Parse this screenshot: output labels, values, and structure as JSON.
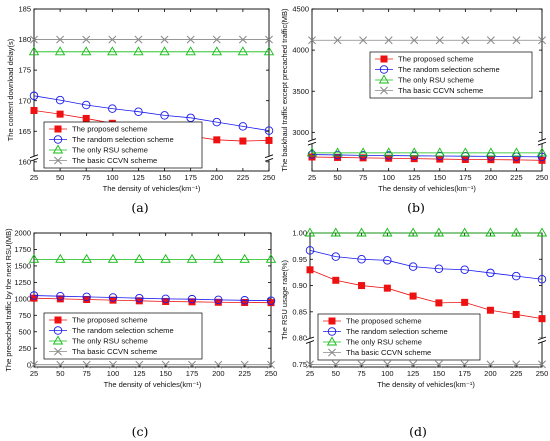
{
  "chart_data": [
    {
      "type": "line",
      "panel_caption": "(a)",
      "xlabel": "The density of vehicles(km⁻¹)",
      "ylabel": "The content download delay(s)",
      "x": [
        25,
        50,
        75,
        100,
        125,
        150,
        175,
        200,
        225,
        250
      ],
      "xlim": [
        25,
        250
      ],
      "x_ticks": [
        "25",
        "50",
        "75",
        "100",
        "125",
        "150",
        "175",
        "200",
        "225",
        "250"
      ],
      "ylim": [
        158.5,
        185
      ],
      "y_ticks": [
        "160",
        "165",
        "170",
        "175",
        "180",
        "185"
      ],
      "axis_break": "near bottom of y-axis",
      "legend": "lower-left",
      "grid": false,
      "series": [
        {
          "name": "The proposed scheme",
          "color": "#ee1111",
          "marker": "square-filled",
          "values": [
            168.4,
            167.8,
            167.1,
            166.3,
            165.6,
            164.9,
            164.2,
            163.6,
            163.4,
            163.5
          ]
        },
        {
          "name": "The random selection scheme",
          "color": "#1a1aee",
          "marker": "circle-open",
          "values": [
            170.8,
            170.1,
            169.3,
            168.7,
            168.2,
            167.6,
            167.2,
            166.5,
            165.8,
            165.1
          ]
        },
        {
          "name": "The only RSU scheme",
          "color": "#11bb11",
          "marker": "triangle-open",
          "values": [
            178,
            178,
            178,
            178,
            178,
            178,
            178,
            178,
            178,
            178
          ]
        },
        {
          "name": "The basic CCVN scheme",
          "color": "#888888",
          "marker": "x",
          "values": [
            180,
            180,
            180,
            180,
            180,
            180,
            180,
            180,
            180,
            180
          ]
        }
      ]
    },
    {
      "type": "line",
      "panel_caption": "(b)",
      "xlabel": "The density of vehicles(km⁻¹)",
      "ylabel": "The backhaul traffic except precached traffic(MB)",
      "x": [
        25,
        50,
        75,
        100,
        125,
        150,
        175,
        200,
        225,
        250
      ],
      "xlim": [
        25,
        250
      ],
      "x_ticks": [
        "25",
        "50",
        "75",
        "100",
        "125",
        "150",
        "175",
        "200",
        "225",
        "250"
      ],
      "ylim": [
        2530,
        4500
      ],
      "y_ticks": [
        "3000",
        "3500",
        "4000",
        "4500"
      ],
      "axis_break": "near bottom of y-axis",
      "legend": "upper-right",
      "grid": false,
      "series": [
        {
          "name": "The proposed scheme",
          "color": "#ee1111",
          "marker": "square-filled",
          "values": [
            2700,
            2695,
            2690,
            2685,
            2680,
            2675,
            2670,
            2668,
            2665,
            2660
          ]
        },
        {
          "name": "The random selection scheme",
          "color": "#1a1aee",
          "marker": "circle-open",
          "values": [
            2730,
            2725,
            2720,
            2718,
            2715,
            2712,
            2710,
            2708,
            2705,
            2702
          ]
        },
        {
          "name": "The only RSU scheme",
          "color": "#11bb11",
          "marker": "triangle-open",
          "values": [
            2750,
            2750,
            2750,
            2750,
            2750,
            2750,
            2750,
            2750,
            2750,
            2750
          ]
        },
        {
          "name": "Tha basic CCVN scheme",
          "color": "#888888",
          "marker": "x",
          "values": [
            4120,
            4120,
            4120,
            4120,
            4120,
            4120,
            4120,
            4120,
            4120,
            4120
          ]
        }
      ]
    },
    {
      "type": "line",
      "panel_caption": "(c)",
      "xlabel": "The density of vehicles(km⁻¹)",
      "ylabel": "The precached traffic by the next RSU(MB)",
      "x": [
        25,
        50,
        75,
        100,
        125,
        150,
        175,
        200,
        225,
        250
      ],
      "xlim": [
        25,
        250
      ],
      "x_ticks": [
        "25",
        "50",
        "75",
        "100",
        "125",
        "150",
        "175",
        "200",
        "225",
        "250"
      ],
      "ylim": [
        -35,
        2000
      ],
      "y_ticks": [
        "0",
        "250",
        "500",
        "750",
        "1000",
        "1250",
        "1500",
        "1750",
        "2000"
      ],
      "legend": "lower-left",
      "grid": false,
      "series": [
        {
          "name": "The proposed scheme",
          "color": "#ee1111",
          "marker": "square-filled",
          "values": [
            1010,
            1000,
            990,
            980,
            970,
            960,
            955,
            948,
            945,
            942
          ]
        },
        {
          "name": "The random selection scheme",
          "color": "#1a1aee",
          "marker": "circle-open",
          "values": [
            1050,
            1040,
            1030,
            1020,
            1010,
            1000,
            995,
            985,
            978,
            972
          ]
        },
        {
          "name": "The only RSU scheme",
          "color": "#11bb11",
          "marker": "triangle-open",
          "values": [
            1600,
            1600,
            1600,
            1600,
            1600,
            1600,
            1600,
            1600,
            1600,
            1600
          ]
        },
        {
          "name": "Tha basic CCVN scheme",
          "color": "#888888",
          "marker": "x",
          "values": [
            0,
            0,
            0,
            0,
            0,
            0,
            0,
            0,
            0,
            0
          ]
        }
      ]
    },
    {
      "type": "line",
      "panel_caption": "(d)",
      "xlabel": "The density of vehicles(km⁻¹)",
      "ylabel": "The RSU usage rate(%)",
      "x": [
        25,
        50,
        75,
        100,
        125,
        150,
        175,
        200,
        225,
        250
      ],
      "xlim": [
        25,
        250
      ],
      "x_ticks": [
        "25",
        "50",
        "75",
        "100",
        "125",
        "150",
        "175",
        "200",
        "225",
        "250"
      ],
      "ylim": [
        0.745,
        1.0
      ],
      "y_ticks": [
        "0.75",
        "0.80",
        "0.85",
        "0.90",
        "0.95",
        "1.00"
      ],
      "axis_break": "lower part of y-axis",
      "legend": "lower-left",
      "grid": false,
      "series": [
        {
          "name": "The proposed scheme",
          "color": "#ee1111",
          "marker": "square-filled",
          "values": [
            0.93,
            0.91,
            0.9,
            0.895,
            0.88,
            0.867,
            0.868,
            0.853,
            0.845,
            0.837
          ]
        },
        {
          "name": "The random selection scheme",
          "color": "#1a1aee",
          "marker": "circle-open",
          "values": [
            0.967,
            0.955,
            0.95,
            0.948,
            0.936,
            0.932,
            0.93,
            0.924,
            0.918,
            0.912
          ]
        },
        {
          "name": "The only RSU scheme",
          "color": "#11bb11",
          "marker": "triangle-open",
          "values": [
            1.0,
            1.0,
            1.0,
            1.0,
            1.0,
            1.0,
            1.0,
            1.0,
            1.0,
            1.0
          ]
        },
        {
          "name": "Tha basic CCVN scheme",
          "color": "#888888",
          "marker": "x",
          "values": [
            0.75,
            0.75,
            0.75,
            0.75,
            0.75,
            0.75,
            0.75,
            0.75,
            0.75,
            0.75
          ]
        }
      ]
    }
  ]
}
